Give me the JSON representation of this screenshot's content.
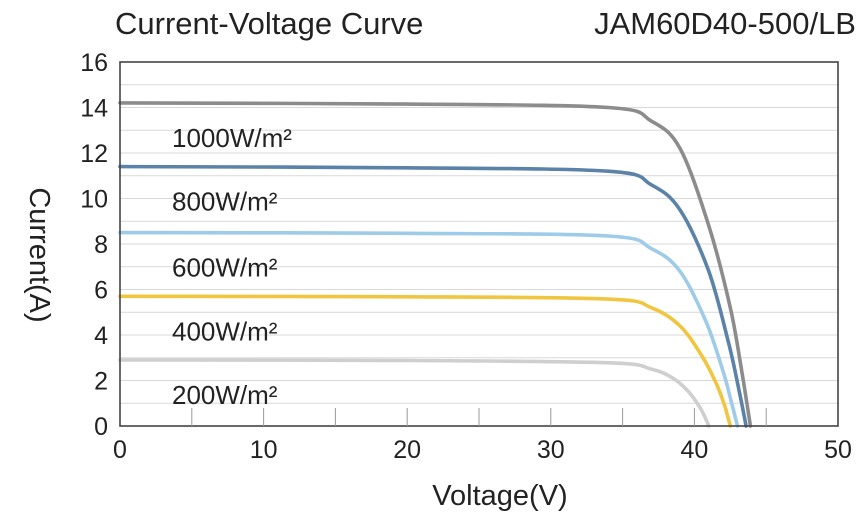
{
  "chart_data": {
    "type": "line",
    "title": "Current-Voltage Curve",
    "subtitle": "JAM60D40-500/LB",
    "xlabel": "Voltage(V)",
    "ylabel": "Current(A)",
    "xlim": [
      0,
      50
    ],
    "ylim": [
      0,
      16
    ],
    "xticks": [
      "0",
      "10",
      "20",
      "30",
      "40",
      "50"
    ],
    "yticks": [
      "0",
      "2",
      "4",
      "6",
      "8",
      "10",
      "12",
      "14",
      "16"
    ],
    "grid": true,
    "series": [
      {
        "name": "1000W/m²",
        "color": "#8c8c8c",
        "isc": 14.2,
        "voc": 43.9,
        "points": [
          [
            0,
            14.2
          ],
          [
            20,
            14.15
          ],
          [
            34,
            14.0
          ],
          [
            37,
            13.4
          ],
          [
            39,
            12.2
          ],
          [
            41,
            8.8
          ],
          [
            42.5,
            5.2
          ],
          [
            43.3,
            2.4
          ],
          [
            43.9,
            0
          ]
        ]
      },
      {
        "name": "800W/m²",
        "color": "#5b82a8",
        "isc": 11.4,
        "voc": 43.6,
        "points": [
          [
            0,
            11.4
          ],
          [
            20,
            11.35
          ],
          [
            34,
            11.2
          ],
          [
            37,
            10.6
          ],
          [
            39,
            9.5
          ],
          [
            41,
            6.8
          ],
          [
            42.4,
            3.6
          ],
          [
            43.1,
            1.6
          ],
          [
            43.6,
            0
          ]
        ]
      },
      {
        "name": "600W/m²",
        "color": "#9ecbe8",
        "isc": 8.5,
        "voc": 43.0,
        "points": [
          [
            0,
            8.5
          ],
          [
            20,
            8.47
          ],
          [
            34,
            8.35
          ],
          [
            37,
            7.8
          ],
          [
            39,
            6.8
          ],
          [
            40.8,
            4.6
          ],
          [
            42,
            2.4
          ],
          [
            42.6,
            1.0
          ],
          [
            43.0,
            0
          ]
        ]
      },
      {
        "name": "400W/m²",
        "color": "#f0c640",
        "isc": 5.7,
        "voc": 42.5,
        "points": [
          [
            0,
            5.7
          ],
          [
            20,
            5.68
          ],
          [
            34,
            5.58
          ],
          [
            37,
            5.2
          ],
          [
            39,
            4.4
          ],
          [
            40.5,
            3.1
          ],
          [
            41.5,
            1.9
          ],
          [
            42.1,
            0.9
          ],
          [
            42.5,
            0
          ]
        ]
      },
      {
        "name": "200W/m²",
        "color": "#cfcfcf",
        "isc": 2.9,
        "voc": 41.0,
        "points": [
          [
            0,
            2.9
          ],
          [
            20,
            2.88
          ],
          [
            34,
            2.78
          ],
          [
            37,
            2.5
          ],
          [
            38.5,
            2.1
          ],
          [
            39.6,
            1.5
          ],
          [
            40.4,
            0.8
          ],
          [
            40.8,
            0.3
          ],
          [
            41.0,
            0
          ]
        ]
      }
    ]
  }
}
